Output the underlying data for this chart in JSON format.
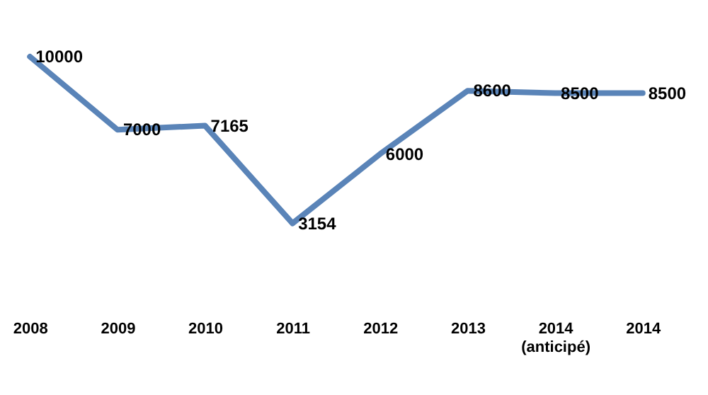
{
  "chart_data": {
    "type": "line",
    "categories": [
      "2008",
      "2009",
      "2010",
      "2011",
      "2012",
      "2013",
      "2014 (anticipé)",
      "2014"
    ],
    "series": [
      {
        "color": "#5a84b8",
        "values": [
          10000,
          7000,
          7165,
          3154,
          6000,
          8600,
          8500,
          8500
        ]
      }
    ],
    "data_labels": true,
    "grid": false,
    "marker": "none",
    "line_style": "solid"
  }
}
